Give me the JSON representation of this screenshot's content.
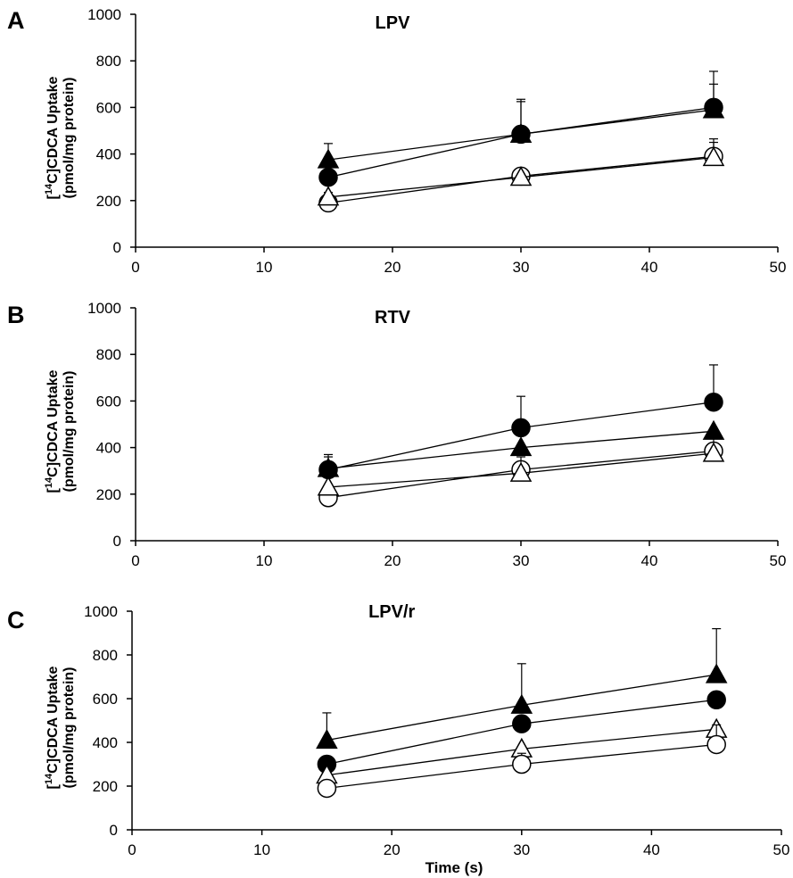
{
  "figure": {
    "xlabel": "Time (s)"
  },
  "chart_data": [
    {
      "type": "line",
      "panel": "A",
      "title": "LPV",
      "ylabel": "[14C]CDCA Uptake (pmol/mg protein)",
      "xlim": [
        0,
        50
      ],
      "ylim": [
        0,
        1000
      ],
      "xticks": [
        0,
        10,
        20,
        30,
        40,
        50
      ],
      "yticks": [
        0,
        200,
        400,
        600,
        800,
        1000
      ],
      "x": [
        15,
        30,
        45
      ],
      "series": [
        {
          "marker": "filled-circle",
          "values": [
            300,
            485,
            600
          ],
          "error": [
            0,
            140,
            155
          ]
        },
        {
          "marker": "filled-triangle",
          "values": [
            375,
            485,
            590
          ],
          "error": [
            70,
            150,
            110
          ]
        },
        {
          "marker": "open-circle",
          "values": [
            190,
            305,
            390
          ],
          "error": [
            0,
            0,
            60
          ]
        },
        {
          "marker": "open-triangle",
          "values": [
            215,
            300,
            385
          ],
          "error": [
            20,
            0,
            80
          ]
        }
      ]
    },
    {
      "type": "line",
      "panel": "B",
      "title": "RTV",
      "ylabel": "[14C]CDCA Uptake (pmol/mg protein)",
      "xlim": [
        0,
        50
      ],
      "ylim": [
        0,
        1000
      ],
      "xticks": [
        0,
        10,
        20,
        30,
        40,
        50
      ],
      "yticks": [
        0,
        200,
        400,
        600,
        800,
        1000
      ],
      "x": [
        15,
        30,
        45
      ],
      "series": [
        {
          "marker": "filled-circle",
          "values": [
            305,
            485,
            595
          ],
          "error": [
            65,
            135,
            160
          ]
        },
        {
          "marker": "filled-triangle",
          "values": [
            310,
            400,
            470
          ],
          "error": [
            50,
            0,
            0
          ]
        },
        {
          "marker": "open-circle",
          "values": [
            185,
            305,
            385
          ],
          "error": [
            0,
            0,
            0
          ]
        },
        {
          "marker": "open-triangle",
          "values": [
            230,
            290,
            375
          ],
          "error": [
            0,
            70,
            80
          ]
        }
      ]
    },
    {
      "type": "line",
      "panel": "C",
      "title": "LPV/r",
      "ylabel": "[14C]CDCA Uptake (pmol/mg protein)",
      "xlim": [
        0,
        50
      ],
      "ylim": [
        0,
        1000
      ],
      "xticks": [
        0,
        10,
        20,
        30,
        40,
        50
      ],
      "yticks": [
        0,
        200,
        400,
        600,
        800,
        1000
      ],
      "x": [
        15,
        30,
        45
      ],
      "series": [
        {
          "marker": "filled-triangle",
          "values": [
            410,
            570,
            710
          ],
          "error": [
            125,
            190,
            210
          ]
        },
        {
          "marker": "filled-circle",
          "values": [
            300,
            485,
            595
          ],
          "error": [
            0,
            0,
            0
          ]
        },
        {
          "marker": "open-triangle",
          "values": [
            250,
            370,
            460
          ],
          "error": [
            0,
            0,
            0
          ]
        },
        {
          "marker": "open-circle",
          "values": [
            190,
            300,
            390
          ],
          "error": [
            0,
            50,
            90
          ]
        }
      ]
    }
  ]
}
